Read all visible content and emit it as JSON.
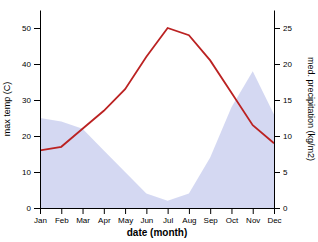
{
  "chart_data": {
    "type": "line",
    "categories": [
      "Jan",
      "Feb",
      "Mar",
      "Apr",
      "May",
      "Jun",
      "Jul",
      "Aug",
      "Sep",
      "Oct",
      "Nov",
      "Dec"
    ],
    "xlabel": "date (month)",
    "ylabel": "max temp (C)",
    "y2label": "med. precipitation (kg/m2)",
    "series": [
      {
        "type": "area",
        "axis": "y2",
        "color": "#b0b8e8",
        "values": [
          12.5,
          12,
          11,
          8,
          5,
          2,
          1,
          2,
          7,
          14,
          19,
          13
        ]
      },
      {
        "type": "line",
        "color": "#bb2222",
        "values": [
          16,
          17,
          22,
          27,
          33,
          42,
          50,
          48,
          41,
          32,
          23,
          18
        ]
      }
    ],
    "ylim": [
      0,
      55
    ],
    "yticks": [
      0,
      10,
      20,
      30,
      40,
      50
    ],
    "y2lim": [
      0,
      27.5
    ],
    "y2ticks": [
      0,
      5,
      10,
      15,
      20,
      25
    ],
    "grid": false
  }
}
